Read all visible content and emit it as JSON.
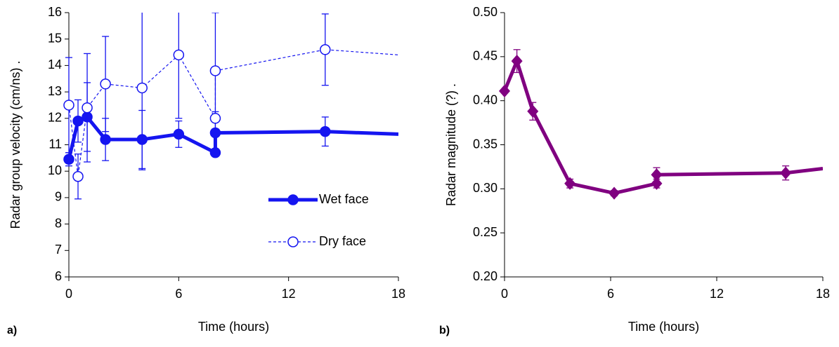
{
  "chart_data": [
    {
      "type": "line",
      "panel_label": "a)",
      "xlabel": "Time (hours)",
      "ylabel": "Radar group velocity (cm/ns)   .",
      "xlim": [
        0,
        18
      ],
      "xticks": [
        0,
        6,
        12,
        18
      ],
      "ylim": [
        6,
        16
      ],
      "yticks": [
        6,
        7,
        8,
        9,
        10,
        11,
        12,
        13,
        14,
        15,
        16
      ],
      "legend": "lower right",
      "series": [
        {
          "name": "Wet face",
          "color": "#1515f0",
          "marker": "circle",
          "filled": true,
          "dashed": false,
          "line_width": 5,
          "x": [
            0,
            0.5,
            1,
            2,
            4,
            6,
            8,
            8,
            14,
            18
          ],
          "values": [
            10.45,
            11.9,
            12.05,
            11.2,
            11.2,
            11.4,
            10.7,
            11.45,
            11.5,
            11.4
          ],
          "errors": [
            0.25,
            0.8,
            1.3,
            0.8,
            1.1,
            0.5,
            null,
            0.8,
            0.55,
            null
          ]
        },
        {
          "name": "Dry face",
          "color": "#1515f0",
          "marker": "circle",
          "filled": false,
          "dashed": true,
          "line_width": 1.2,
          "x": [
            0,
            0.5,
            1,
            2,
            4,
            6,
            8,
            8,
            14,
            18
          ],
          "values": [
            12.5,
            9.8,
            12.4,
            13.3,
            13.15,
            14.4,
            12.0,
            13.8,
            14.6,
            14.4
          ],
          "errors": [
            1.8,
            0.85,
            2.05,
            1.8,
            3.1,
            2.4,
            null,
            2.2,
            1.35,
            null
          ]
        }
      ]
    },
    {
      "type": "line",
      "panel_label": "b)",
      "xlabel": "Time (hours)",
      "ylabel": "Radar magnitude (?)   .",
      "xlim": [
        0,
        18
      ],
      "xticks": [
        0,
        6,
        12,
        18
      ],
      "ylim": [
        0.2,
        0.5
      ],
      "yticks": [
        {
          "value": 0.2,
          "label": "0.20"
        },
        {
          "value": 0.25,
          "label": "0.25"
        },
        {
          "value": 0.3,
          "label": "0.30"
        },
        {
          "value": 0.35,
          "label": "0.35"
        },
        {
          "value": 0.4,
          "label": "0.40"
        },
        {
          "value": 0.45,
          "label": "0.45"
        },
        {
          "value": 0.5,
          "label": "0.50"
        }
      ],
      "series": [
        {
          "color": "#800080",
          "marker": "diamond",
          "filled": true,
          "dashed": false,
          "line_width": 5,
          "x": [
            0,
            0.7,
            1.6,
            3.7,
            6.2,
            8.6,
            8.6,
            15.9,
            18
          ],
          "values": [
            0.411,
            0.445,
            0.388,
            0.306,
            0.295,
            0.306,
            0.316,
            0.318,
            0.323
          ],
          "errors": [
            null,
            0.013,
            0.01,
            0.005,
            0.003,
            0.005,
            0.008,
            0.008,
            null
          ]
        }
      ]
    }
  ]
}
